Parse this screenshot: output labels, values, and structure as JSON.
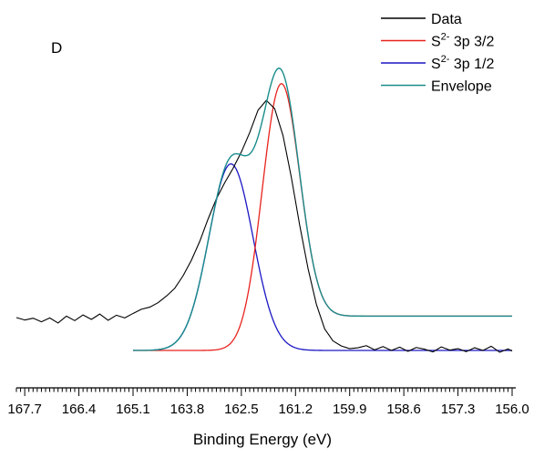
{
  "chart_data": {
    "type": "line",
    "panel_label": "D",
    "xlabel": "Binding Energy (eV)",
    "ylabel": "",
    "xlim": [
      167.9,
      156.0
    ],
    "x_reversed": true,
    "ylim": [
      0,
      100
    ],
    "y_ticks_shown": false,
    "grid": false,
    "legend_placement": "top-right",
    "x_ticks": [
      "167.7",
      "166.4",
      "165.1",
      "163.8",
      "162.5",
      "161.2",
      "159.9",
      "158.6",
      "157.3",
      "156.0"
    ],
    "legend": [
      {
        "base": "Data",
        "sup": "",
        "suffix": "",
        "color": "#000000"
      },
      {
        "base": "S",
        "sup": "2-",
        "suffix": " 3p 3/2",
        "color": "#e8231e"
      },
      {
        "base": "S",
        "sup": "2-",
        "suffix": " 3p 1/2",
        "color": "#1b17c4"
      },
      {
        "base": "Envelope",
        "sup": "",
        "suffix": "",
        "color": "#1a8c8c"
      }
    ],
    "peaks": {
      "s2_3p_3_2": {
        "center": 161.55,
        "fwhm": 1.05,
        "height": 79.0,
        "background_high": 11.5,
        "background_low": 0.0
      },
      "s2_3p_1_2": {
        "center": 162.75,
        "fwhm": 1.25,
        "height": 62.5,
        "background_low": 0.0
      }
    },
    "series": [
      {
        "name": "Data",
        "color": "#000000",
        "x": [
          167.9,
          167.7,
          167.5,
          167.3,
          167.1,
          166.9,
          166.7,
          166.5,
          166.3,
          166.1,
          165.9,
          165.7,
          165.5,
          165.3,
          165.1,
          164.9,
          164.7,
          164.5,
          164.3,
          164.1,
          163.9,
          163.7,
          163.5,
          163.3,
          163.1,
          162.9,
          162.7,
          162.5,
          162.3,
          162.1,
          161.9,
          161.7,
          161.5,
          161.3,
          161.1,
          160.9,
          160.7,
          160.5,
          160.3,
          160.1,
          159.9,
          159.7,
          159.5,
          159.3,
          159.1,
          158.9,
          158.7,
          158.5,
          158.3,
          158.1,
          157.9,
          157.7,
          157.5,
          157.3,
          157.1,
          156.9,
          156.7,
          156.5,
          156.3,
          156.1,
          156.0
        ],
        "y": [
          11.0,
          10.2,
          10.8,
          9.6,
          10.9,
          9.2,
          11.5,
          10.0,
          11.9,
          10.4,
          12.2,
          10.1,
          11.8,
          10.9,
          12.4,
          13.8,
          14.5,
          16.0,
          18.2,
          20.8,
          25.0,
          30.2,
          36.5,
          44.0,
          50.8,
          56.2,
          61.0,
          66.5,
          73.0,
          80.5,
          83.8,
          81.0,
          72.0,
          58.0,
          42.0,
          27.5,
          15.5,
          7.2,
          3.2,
          1.5,
          0.6,
          0.9,
          1.6,
          0.2,
          1.3,
          0.0,
          1.1,
          -0.3,
          1.0,
          0.4,
          -0.5,
          1.2,
          0.1,
          0.6,
          -0.4,
          0.9,
          0.0,
          1.4,
          -0.6,
          0.5,
          -0.2
        ]
      }
    ]
  }
}
